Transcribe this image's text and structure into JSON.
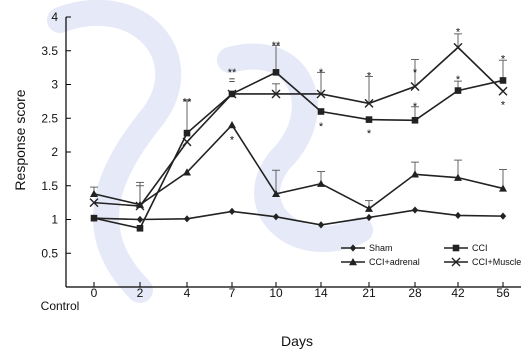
{
  "chart_data": {
    "type": "line",
    "xlabel": "Days",
    "ylabel": "Response score",
    "categories": [
      "0",
      "2",
      "4",
      "7",
      "10",
      "14",
      "21",
      "28",
      "42",
      "56"
    ],
    "baseline_label": "Control",
    "ylim": [
      0,
      4
    ],
    "yticks": [
      "0.5",
      "1",
      "1.5",
      "2",
      "2.5",
      "3",
      "3.5",
      "4"
    ],
    "ytick_values": [
      0.5,
      1,
      1.5,
      2,
      2.5,
      3,
      3.5,
      4
    ],
    "grid": false,
    "legend_position": "bottom-center",
    "series": [
      {
        "name": "Sham",
        "marker": "diamond",
        "values": [
          1.02,
          1.0,
          1.01,
          1.12,
          1.04,
          0.92,
          1.03,
          1.14,
          1.06,
          1.05
        ],
        "errors": [
          null,
          null,
          null,
          null,
          null,
          null,
          null,
          null,
          null,
          null
        ]
      },
      {
        "name": "CCI",
        "marker": "square",
        "values": [
          1.02,
          0.87,
          2.28,
          2.86,
          3.18,
          2.6,
          2.48,
          2.47,
          2.91,
          3.06
        ],
        "errors": [
          null,
          null,
          0.48,
          null,
          0.4,
          null,
          null,
          0.2,
          0.14,
          0.3
        ]
      },
      {
        "name": "CCI+adrenal",
        "marker": "triangle",
        "values": [
          1.38,
          1.22,
          1.7,
          2.4,
          1.38,
          1.53,
          1.16,
          1.67,
          1.62,
          1.46
        ],
        "errors": [
          0.1,
          0.28,
          null,
          null,
          0.35,
          0.18,
          0.12,
          0.18,
          0.26,
          0.28
        ]
      },
      {
        "name": "CCI+Muscle",
        "marker": "x",
        "values": [
          1.25,
          1.2,
          2.15,
          2.86,
          2.86,
          2.86,
          2.72,
          2.97,
          3.55,
          2.9
        ],
        "errors": [
          null,
          0.35,
          null,
          null,
          0.15,
          0.32,
          0.4,
          0.4,
          0.2,
          null
        ]
      }
    ],
    "annotations": [
      {
        "x": "4",
        "text": "**",
        "near_value": 2.76
      },
      {
        "x": "7",
        "text": "**",
        "near_value": 3.2
      },
      {
        "x": "7",
        "text": "=",
        "near_value": 3.08
      },
      {
        "x": "7",
        "text": "*",
        "near_value": 2.2
      },
      {
        "x": "10",
        "text": "**",
        "near_value": 3.6
      },
      {
        "x": "14",
        "text": "*",
        "near_value": 3.2
      },
      {
        "x": "14",
        "text": "*",
        "near_value": 2.4
      },
      {
        "x": "21",
        "text": "*",
        "near_value": 3.15
      },
      {
        "x": "21",
        "text": "*",
        "near_value": 2.3
      },
      {
        "x": "28",
        "text": "*",
        "near_value": 3.2
      },
      {
        "x": "28",
        "text": "*",
        "near_value": 2.7
      },
      {
        "x": "42",
        "text": "*",
        "near_value": 3.8
      },
      {
        "x": "42",
        "text": "*",
        "near_value": 3.1
      },
      {
        "x": "56",
        "text": "*",
        "near_value": 3.4
      },
      {
        "x": "56",
        "text": "*",
        "near_value": 2.72
      }
    ]
  },
  "colors": {
    "line": "#222222",
    "axis": "#000000",
    "watermark": "#7f8fd6"
  }
}
